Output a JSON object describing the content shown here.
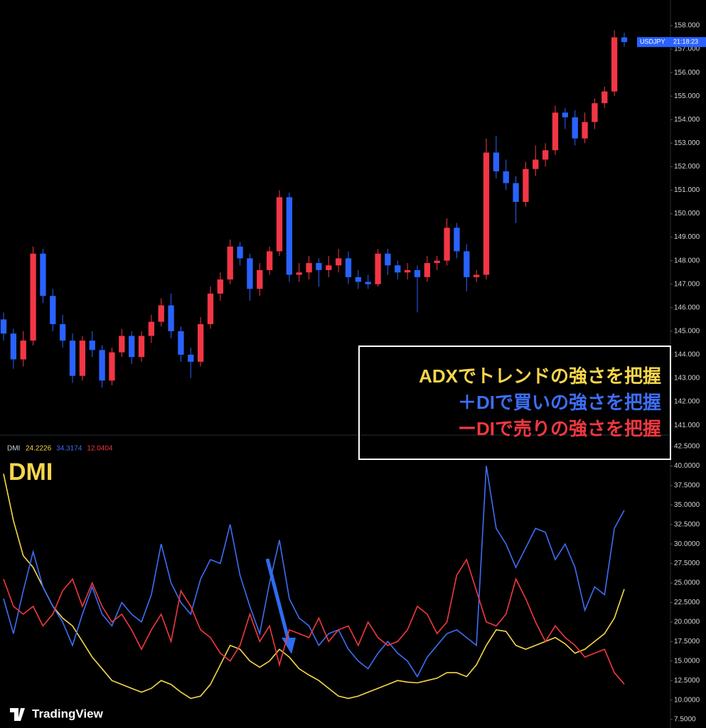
{
  "chart_data": [
    {
      "type": "candlestick",
      "symbol": "USDJPY",
      "time": "21:18:23",
      "open": [
        145.5,
        144.9,
        143.8,
        144.6,
        148.3,
        146.5,
        145.3,
        144.6,
        143.1,
        144.6,
        144.2,
        142.9,
        144.1,
        144.8,
        143.9,
        144.8,
        145.4,
        146.1,
        145.0,
        144.0,
        143.7,
        145.3,
        146.6,
        147.2,
        148.6,
        148.1,
        146.8,
        147.6,
        148.4,
        150.7,
        147.4,
        147.5,
        147.9,
        147.6,
        147.8,
        148.1,
        147.3,
        147.1,
        147.0,
        148.3,
        147.8,
        147.5,
        147.6,
        147.3,
        147.9,
        148.0,
        149.4,
        148.4,
        147.3,
        147.4,
        152.6,
        151.8,
        151.3,
        150.5,
        151.9,
        152.3,
        152.7,
        154.3,
        154.1,
        153.2,
        153.9,
        154.7,
        155.2,
        157.5
      ],
      "high": [
        145.8,
        145.1,
        145.0,
        148.6,
        148.5,
        146.8,
        145.7,
        144.9,
        144.8,
        145.0,
        144.4,
        144.3,
        145.1,
        145.0,
        145.0,
        145.7,
        146.4,
        146.6,
        145.2,
        144.3,
        145.6,
        146.9,
        147.5,
        148.9,
        148.8,
        148.3,
        147.9,
        148.6,
        151.0,
        150.9,
        147.9,
        148.2,
        148.1,
        148.2,
        148.5,
        148.4,
        147.6,
        147.4,
        148.5,
        148.5,
        148.0,
        147.9,
        147.8,
        148.2,
        148.2,
        149.8,
        149.6,
        148.7,
        147.6,
        153.2,
        153.3,
        152.3,
        151.6,
        152.2,
        152.9,
        153.0,
        154.6,
        154.5,
        154.4,
        154.3,
        154.9,
        155.4,
        157.8,
        157.7
      ],
      "low": [
        144.6,
        143.4,
        143.5,
        144.4,
        146.2,
        145.0,
        144.3,
        142.8,
        142.9,
        143.9,
        142.6,
        142.7,
        143.9,
        143.6,
        143.7,
        144.5,
        145.2,
        144.7,
        143.7,
        143.0,
        143.5,
        145.1,
        146.3,
        147.0,
        147.8,
        146.3,
        146.5,
        147.4,
        148.2,
        147.1,
        147.1,
        147.2,
        146.9,
        147.3,
        147.5,
        147.0,
        146.8,
        146.8,
        146.9,
        147.4,
        147.2,
        147.2,
        145.8,
        147.1,
        147.6,
        147.8,
        148.1,
        146.7,
        147.1,
        147.2,
        151.5,
        151.0,
        149.6,
        150.3,
        151.6,
        152.0,
        152.5,
        153.6,
        152.9,
        153.0,
        153.6,
        154.5,
        155.0,
        157.1
      ],
      "close": [
        144.9,
        143.8,
        144.6,
        148.3,
        146.5,
        145.3,
        144.6,
        143.1,
        144.6,
        144.2,
        142.9,
        144.1,
        144.8,
        143.9,
        144.8,
        145.4,
        146.1,
        145.0,
        144.0,
        143.7,
        145.3,
        146.6,
        147.2,
        148.6,
        148.1,
        146.8,
        147.6,
        148.4,
        150.7,
        147.4,
        147.5,
        147.9,
        147.6,
        147.8,
        148.1,
        147.3,
        147.1,
        147.0,
        148.3,
        147.8,
        147.5,
        147.6,
        147.3,
        147.9,
        148.0,
        149.4,
        148.4,
        147.3,
        147.4,
        152.6,
        151.8,
        151.3,
        150.5,
        151.9,
        152.3,
        152.7,
        154.3,
        154.1,
        153.2,
        153.9,
        154.7,
        155.2,
        157.5,
        157.3
      ],
      "up_color": "#f23645",
      "down_color": "#2962ff",
      "ylim": [
        140.58,
        159.09
      ],
      "yticks": [
        {
          "value": 141,
          "label": "141.000"
        },
        {
          "value": 142,
          "label": "142.000"
        },
        {
          "value": 143,
          "label": "143.000"
        },
        {
          "value": 144,
          "label": "144.000"
        },
        {
          "value": 145,
          "label": "145.000"
        },
        {
          "value": 146,
          "label": "146.000"
        },
        {
          "value": 147,
          "label": "147.000"
        },
        {
          "value": 148,
          "label": "148.000"
        },
        {
          "value": 149,
          "label": "149.000"
        },
        {
          "value": 150,
          "label": "150.000"
        },
        {
          "value": 151,
          "label": "151.000"
        },
        {
          "value": 152,
          "label": "152.000"
        },
        {
          "value": 153,
          "label": "153.000"
        },
        {
          "value": 154,
          "label": "154.000"
        },
        {
          "value": 155,
          "label": "155.000"
        },
        {
          "value": 156,
          "label": "156.000"
        },
        {
          "value": 157,
          "label": "157.000"
        },
        {
          "value": 158,
          "label": "158.000"
        }
      ],
      "grid": false
    },
    {
      "type": "line",
      "title": "DMI",
      "annotation": "DMI",
      "series": [
        {
          "color": "#f7d64a",
          "values": [
            39,
            33,
            28.5,
            27,
            24.5,
            22,
            20.5,
            19.5,
            17.5,
            15.5,
            14,
            12.5,
            12,
            11.5,
            11,
            11.5,
            12.5,
            12,
            11,
            10.2,
            10.5,
            12,
            14.5,
            17,
            16.5,
            15,
            14.2,
            15,
            16.5,
            15.5,
            14,
            13.2,
            12.5,
            11.5,
            10.5,
            10.2,
            10.5,
            11,
            11.5,
            12,
            12.5,
            12.3,
            12.2,
            12.5,
            12.8,
            13.5,
            13.5,
            13,
            14.5,
            17,
            19,
            18.8,
            17,
            16.5,
            17,
            17.5,
            18,
            17.2,
            16,
            16.5,
            17.5,
            18.5,
            20.5,
            24.2226
          ]
        },
        {
          "color": "#3d6ef5",
          "values": [
            23,
            18.5,
            24,
            29,
            24.5,
            22,
            20,
            17,
            21,
            24.5,
            21,
            19.5,
            22.5,
            21,
            20,
            23.5,
            30,
            25,
            22.5,
            21,
            25.5,
            28,
            27.5,
            32.5,
            26,
            22,
            18.5,
            25,
            30.5,
            23,
            20.5,
            19.5,
            17,
            18.5,
            19,
            16.5,
            15,
            14,
            16,
            17.5,
            16,
            15,
            13,
            15.5,
            17,
            18.5,
            19,
            18,
            17,
            40,
            32,
            30,
            27,
            29.5,
            32,
            31.5,
            28,
            30,
            27,
            21.5,
            24.5,
            23.5,
            32,
            34.3174
          ]
        },
        {
          "color": "#f0383f",
          "values": [
            25.5,
            22,
            21,
            22,
            19.5,
            21,
            24,
            25.5,
            22,
            25,
            22,
            20,
            21,
            19,
            16.5,
            19,
            21,
            17.5,
            24,
            22,
            19,
            18,
            16,
            15,
            17,
            21,
            17.5,
            19.5,
            14.5,
            19,
            18.5,
            18,
            20.5,
            17.5,
            19,
            19.5,
            17,
            20,
            18,
            17,
            17.5,
            19,
            22,
            21,
            18.5,
            20,
            26,
            28,
            24,
            20,
            19.5,
            21,
            25.5,
            23,
            20,
            17.5,
            19.5,
            18,
            17,
            15.5,
            16,
            16.5,
            13.5,
            12.0404
          ]
        }
      ],
      "ylim": [
        6.41,
        43.96
      ],
      "yticks": [
        {
          "value": 7.5,
          "label": "7.5000"
        },
        {
          "value": 10,
          "label": "10.0000"
        },
        {
          "value": 12.5,
          "label": "12.5000"
        },
        {
          "value": 15,
          "label": "15.0000"
        },
        {
          "value": 17.5,
          "label": "17.5000"
        },
        {
          "value": 20,
          "label": "20.0000"
        },
        {
          "value": 22.5,
          "label": "22.5000"
        },
        {
          "value": 25,
          "label": "25.0000"
        },
        {
          "value": 27.5,
          "label": "27.5000"
        },
        {
          "value": 30,
          "label": "30.0000"
        },
        {
          "value": 32.5,
          "label": "32.5000"
        },
        {
          "value": 35,
          "label": "35.0000"
        },
        {
          "value": 37.5,
          "label": "37.5000"
        },
        {
          "value": 40,
          "label": "40.0000"
        },
        {
          "value": 42.5,
          "label": "42.5000"
        }
      ],
      "grid": false
    }
  ],
  "annotation_box": {
    "lines": [
      {
        "text": "ADXでトレンドの強さを把握",
        "color": "#f7d64a"
      },
      {
        "text": "＋DIで買いの強さを把握",
        "color": "#3d6ef5"
      },
      {
        "text": "ーDIで売りの強さを把握",
        "color": "#f0383f"
      }
    ]
  },
  "watermark": "TradingView"
}
